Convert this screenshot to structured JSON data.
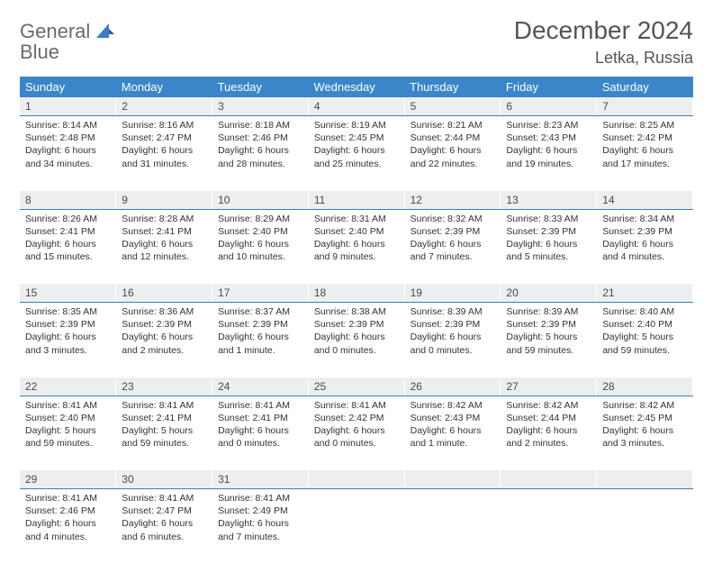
{
  "logo": {
    "word1": "General",
    "word2": "Blue"
  },
  "title": "December 2024",
  "location": "Letka, Russia",
  "colors": {
    "header_bg": "#3a86c8",
    "header_text": "#ffffff",
    "daynum_bg": "#eceeef",
    "daynum_border": "#3a7fb5",
    "body_text": "#333333",
    "logo_gray": "#6b6b6b",
    "logo_blue": "#3a7fc4"
  },
  "weekdays": [
    "Sunday",
    "Monday",
    "Tuesday",
    "Wednesday",
    "Thursday",
    "Friday",
    "Saturday"
  ],
  "weeks": [
    [
      {
        "n": "1",
        "sr": "Sunrise: 8:14 AM",
        "ss": "Sunset: 2:48 PM",
        "d1": "Daylight: 6 hours",
        "d2": "and 34 minutes."
      },
      {
        "n": "2",
        "sr": "Sunrise: 8:16 AM",
        "ss": "Sunset: 2:47 PM",
        "d1": "Daylight: 6 hours",
        "d2": "and 31 minutes."
      },
      {
        "n": "3",
        "sr": "Sunrise: 8:18 AM",
        "ss": "Sunset: 2:46 PM",
        "d1": "Daylight: 6 hours",
        "d2": "and 28 minutes."
      },
      {
        "n": "4",
        "sr": "Sunrise: 8:19 AM",
        "ss": "Sunset: 2:45 PM",
        "d1": "Daylight: 6 hours",
        "d2": "and 25 minutes."
      },
      {
        "n": "5",
        "sr": "Sunrise: 8:21 AM",
        "ss": "Sunset: 2:44 PM",
        "d1": "Daylight: 6 hours",
        "d2": "and 22 minutes."
      },
      {
        "n": "6",
        "sr": "Sunrise: 8:23 AM",
        "ss": "Sunset: 2:43 PM",
        "d1": "Daylight: 6 hours",
        "d2": "and 19 minutes."
      },
      {
        "n": "7",
        "sr": "Sunrise: 8:25 AM",
        "ss": "Sunset: 2:42 PM",
        "d1": "Daylight: 6 hours",
        "d2": "and 17 minutes."
      }
    ],
    [
      {
        "n": "8",
        "sr": "Sunrise: 8:26 AM",
        "ss": "Sunset: 2:41 PM",
        "d1": "Daylight: 6 hours",
        "d2": "and 15 minutes."
      },
      {
        "n": "9",
        "sr": "Sunrise: 8:28 AM",
        "ss": "Sunset: 2:41 PM",
        "d1": "Daylight: 6 hours",
        "d2": "and 12 minutes."
      },
      {
        "n": "10",
        "sr": "Sunrise: 8:29 AM",
        "ss": "Sunset: 2:40 PM",
        "d1": "Daylight: 6 hours",
        "d2": "and 10 minutes."
      },
      {
        "n": "11",
        "sr": "Sunrise: 8:31 AM",
        "ss": "Sunset: 2:40 PM",
        "d1": "Daylight: 6 hours",
        "d2": "and 9 minutes."
      },
      {
        "n": "12",
        "sr": "Sunrise: 8:32 AM",
        "ss": "Sunset: 2:39 PM",
        "d1": "Daylight: 6 hours",
        "d2": "and 7 minutes."
      },
      {
        "n": "13",
        "sr": "Sunrise: 8:33 AM",
        "ss": "Sunset: 2:39 PM",
        "d1": "Daylight: 6 hours",
        "d2": "and 5 minutes."
      },
      {
        "n": "14",
        "sr": "Sunrise: 8:34 AM",
        "ss": "Sunset: 2:39 PM",
        "d1": "Daylight: 6 hours",
        "d2": "and 4 minutes."
      }
    ],
    [
      {
        "n": "15",
        "sr": "Sunrise: 8:35 AM",
        "ss": "Sunset: 2:39 PM",
        "d1": "Daylight: 6 hours",
        "d2": "and 3 minutes."
      },
      {
        "n": "16",
        "sr": "Sunrise: 8:36 AM",
        "ss": "Sunset: 2:39 PM",
        "d1": "Daylight: 6 hours",
        "d2": "and 2 minutes."
      },
      {
        "n": "17",
        "sr": "Sunrise: 8:37 AM",
        "ss": "Sunset: 2:39 PM",
        "d1": "Daylight: 6 hours",
        "d2": "and 1 minute."
      },
      {
        "n": "18",
        "sr": "Sunrise: 8:38 AM",
        "ss": "Sunset: 2:39 PM",
        "d1": "Daylight: 6 hours",
        "d2": "and 0 minutes."
      },
      {
        "n": "19",
        "sr": "Sunrise: 8:39 AM",
        "ss": "Sunset: 2:39 PM",
        "d1": "Daylight: 6 hours",
        "d2": "and 0 minutes."
      },
      {
        "n": "20",
        "sr": "Sunrise: 8:39 AM",
        "ss": "Sunset: 2:39 PM",
        "d1": "Daylight: 5 hours",
        "d2": "and 59 minutes."
      },
      {
        "n": "21",
        "sr": "Sunrise: 8:40 AM",
        "ss": "Sunset: 2:40 PM",
        "d1": "Daylight: 5 hours",
        "d2": "and 59 minutes."
      }
    ],
    [
      {
        "n": "22",
        "sr": "Sunrise: 8:41 AM",
        "ss": "Sunset: 2:40 PM",
        "d1": "Daylight: 5 hours",
        "d2": "and 59 minutes."
      },
      {
        "n": "23",
        "sr": "Sunrise: 8:41 AM",
        "ss": "Sunset: 2:41 PM",
        "d1": "Daylight: 5 hours",
        "d2": "and 59 minutes."
      },
      {
        "n": "24",
        "sr": "Sunrise: 8:41 AM",
        "ss": "Sunset: 2:41 PM",
        "d1": "Daylight: 6 hours",
        "d2": "and 0 minutes."
      },
      {
        "n": "25",
        "sr": "Sunrise: 8:41 AM",
        "ss": "Sunset: 2:42 PM",
        "d1": "Daylight: 6 hours",
        "d2": "and 0 minutes."
      },
      {
        "n": "26",
        "sr": "Sunrise: 8:42 AM",
        "ss": "Sunset: 2:43 PM",
        "d1": "Daylight: 6 hours",
        "d2": "and 1 minute."
      },
      {
        "n": "27",
        "sr": "Sunrise: 8:42 AM",
        "ss": "Sunset: 2:44 PM",
        "d1": "Daylight: 6 hours",
        "d2": "and 2 minutes."
      },
      {
        "n": "28",
        "sr": "Sunrise: 8:42 AM",
        "ss": "Sunset: 2:45 PM",
        "d1": "Daylight: 6 hours",
        "d2": "and 3 minutes."
      }
    ],
    [
      {
        "n": "29",
        "sr": "Sunrise: 8:41 AM",
        "ss": "Sunset: 2:46 PM",
        "d1": "Daylight: 6 hours",
        "d2": "and 4 minutes."
      },
      {
        "n": "30",
        "sr": "Sunrise: 8:41 AM",
        "ss": "Sunset: 2:47 PM",
        "d1": "Daylight: 6 hours",
        "d2": "and 6 minutes."
      },
      {
        "n": "31",
        "sr": "Sunrise: 8:41 AM",
        "ss": "Sunset: 2:49 PM",
        "d1": "Daylight: 6 hours",
        "d2": "and 7 minutes."
      },
      null,
      null,
      null,
      null
    ]
  ]
}
